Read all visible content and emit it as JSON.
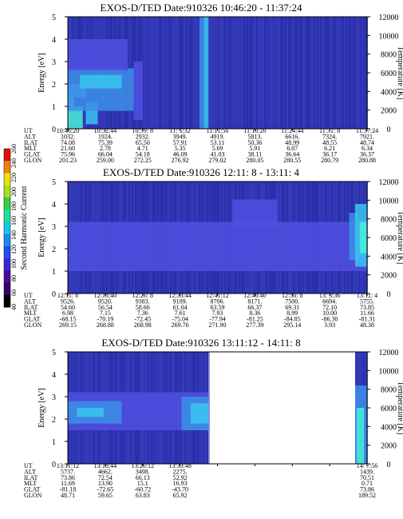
{
  "colors": {
    "background": "#ffffff",
    "spectrogram_base": "#2e34b0",
    "enhancement_scale": [
      "#5050e0",
      "#3d8fe8",
      "#39c6f0",
      "#46f0d8",
      "#7cf59a"
    ]
  },
  "chart_data": [
    {
      "type": "heatmap",
      "title": "EXOS-D/TED   Date:910326  10:46:20 - 11:37:24",
      "ylabel": "Energy [eV]",
      "ylabel_right": "Temperature [K]",
      "ylim": [
        0,
        5
      ],
      "ylim_right": [
        0,
        12000
      ],
      "y_ticks": [
        "0",
        "1",
        "2",
        "3",
        "4",
        "5"
      ],
      "y_ticks_right": [
        "0",
        "2000",
        "4000",
        "6000",
        "8000",
        "10000",
        "12000"
      ],
      "row_labels": [
        "UT",
        "ALT",
        "ILAT",
        "MLT",
        "GLAT",
        "GLON"
      ],
      "columns": [
        [
          "10:46:20",
          "1032.",
          "74.08",
          "21.60",
          "75.96",
          "201.23"
        ],
        [
          "10:52:44",
          "1924.",
          "75.39",
          "2.78",
          "66.04",
          "259.00"
        ],
        [
          "10:59: 8",
          "2932.",
          "65.50",
          "4.71",
          "54.18",
          "272.25"
        ],
        [
          "11: 5:32",
          "3949.",
          "57.91",
          "5.35",
          "46.09",
          "276.92"
        ],
        [
          "11:11:56",
          "4919.",
          "53.11",
          "5.69",
          "41.03",
          "279.02"
        ],
        [
          "11:18:20",
          "5813.",
          "50.36",
          "5.91",
          "38.11",
          "280.05"
        ],
        [
          "11:24:44",
          "6616.",
          "48.99",
          "6.07",
          "36.64",
          "280.55"
        ],
        [
          "11:31: 8",
          "7324.",
          "48.55",
          "6.21",
          "36.17",
          "280.79"
        ],
        [
          "11:37:24",
          "7921.",
          "48.74",
          "6.34",
          "36.37",
          "280.88"
        ]
      ],
      "features": [
        {
          "t": [
            0.0,
            0.02
          ],
          "e": [
            0.0,
            1.4
          ],
          "level": 3
        },
        {
          "t": [
            0.02,
            0.05
          ],
          "e": [
            0.0,
            1.0
          ],
          "level": 3
        },
        {
          "t": [
            0.0,
            0.06
          ],
          "e": [
            1.4,
            2.0
          ],
          "level": 2
        },
        {
          "t": [
            0.06,
            0.1
          ],
          "e": [
            0.2,
            1.2
          ],
          "level": 2
        },
        {
          "t": [
            0.0,
            0.22
          ],
          "e": [
            0.8,
            2.7
          ],
          "level": 1
        },
        {
          "t": [
            0.04,
            0.18
          ],
          "e": [
            1.8,
            2.4
          ],
          "level": 2
        },
        {
          "t": [
            0.0,
            0.2
          ],
          "e": [
            2.6,
            4.0
          ],
          "level": 0
        },
        {
          "t": [
            0.22,
            0.25
          ],
          "e": [
            0.4,
            3.0
          ],
          "level": 0
        },
        {
          "t": [
            0.44,
            0.46
          ],
          "e": [
            0.0,
            5.0
          ],
          "level": 1
        },
        {
          "t": [
            0.455,
            0.47
          ],
          "e": [
            0.0,
            5.0
          ],
          "level": 2
        }
      ]
    },
    {
      "type": "heatmap",
      "title": "EXOS-D/TED   Date:910326  12:11: 8 - 13:11: 4",
      "ylabel": "Energy [eV]",
      "ylabel_right": "Temperature [K]",
      "ylim": [
        0,
        5
      ],
      "ylim_right": [
        0,
        12000
      ],
      "y_ticks": [
        "0",
        "1",
        "2",
        "3",
        "4",
        "5"
      ],
      "y_ticks_right": [
        "0",
        "2000",
        "4000",
        "6000",
        "8000",
        "10000",
        "12000"
      ],
      "row_labels": [
        "UT",
        "ALT",
        "ILAT",
        "MLT",
        "GLAT",
        "GLON"
      ],
      "columns": [
        [
          "12:11: 8",
          "9526.",
          "54.60",
          "6.98",
          "-68.15",
          "269.15"
        ],
        [
          "12:18:40",
          "9520.",
          "56.54",
          "7.15",
          "-70.19",
          "268.88"
        ],
        [
          "12:26: 8",
          "9383.",
          "58.66",
          "7.36",
          "-72.45",
          "268.98"
        ],
        [
          "12:33:44",
          "9109.",
          "61.04",
          "7.61",
          "-75.04",
          "269.76"
        ],
        [
          "12:41:12",
          "8706.",
          "63.59",
          "7.93",
          "-77.94",
          "271.90"
        ],
        [
          "12:48:40",
          "8171.",
          "66.37",
          "8.36",
          "-81.25",
          "277.39"
        ],
        [
          "12:56: 8",
          "7500.",
          "69.31",
          "8.99",
          "-84.85",
          "295.14"
        ],
        [
          "13: 3:36",
          "6694.",
          "72.10",
          "10.00",
          "-86.30",
          "3.93"
        ],
        [
          "13:11: 4",
          "5755.",
          "73.85",
          "11.66",
          "-81.31",
          "48.38"
        ]
      ],
      "features": [
        {
          "t": [
            0.0,
            1.0
          ],
          "e": [
            1.0,
            3.2
          ],
          "level": 0
        },
        {
          "t": [
            0.55,
            0.7
          ],
          "e": [
            3.0,
            4.2
          ],
          "level": 0
        },
        {
          "t": [
            0.94,
            0.97
          ],
          "e": [
            1.5,
            3.6
          ],
          "level": 1
        },
        {
          "t": [
            0.96,
            1.0
          ],
          "e": [
            1.2,
            4.0
          ],
          "level": 2
        },
        {
          "t": [
            0.975,
            1.0
          ],
          "e": [
            1.8,
            3.2
          ],
          "level": 3
        }
      ]
    },
    {
      "type": "heatmap",
      "title": "EXOS-D/TED   Date:910326  13:11:12 - 14:11: 8",
      "ylabel": "Energy [eV]",
      "ylabel_right": "Temperature [K]",
      "ylim": [
        0,
        5
      ],
      "ylim_right": [
        0,
        12000
      ],
      "y_ticks": [
        "0",
        "1",
        "2",
        "3",
        "4",
        "5"
      ],
      "y_ticks_right": [
        "0",
        "2000",
        "4000",
        "6000",
        "8000",
        "10000",
        "12000"
      ],
      "row_labels": [
        "UT",
        "ALT",
        "ILAT",
        "MLT",
        "GLAT",
        "GLON"
      ],
      "columns": [
        [
          "13:11:12",
          "5737.",
          "73.86",
          "11.69",
          "-81.18",
          "48.71"
        ],
        [
          "13:18:44",
          "4662.",
          "72.54",
          "13.90",
          "-72.65",
          "59.65"
        ],
        [
          "13:26:12",
          "3498.",
          "66.13",
          "15.1",
          "-60.72",
          "63.83"
        ],
        [
          "13:33:48",
          "2275.",
          "52.92",
          "16.93",
          "-43.70",
          "65.92"
        ],
        [
          "",
          "",
          "",
          "",
          "",
          ""
        ],
        [
          "",
          "",
          "",
          "",
          "",
          ""
        ],
        [
          "",
          "",
          "",
          "",
          "",
          ""
        ],
        [
          "",
          "",
          "",
          "",
          "",
          ""
        ],
        [
          "14: 7:56",
          "1439.",
          "70.51",
          "0.71",
          "73.86",
          "189.52"
        ]
      ],
      "data_gap": [
        0.47,
        0.96
      ],
      "features": [
        {
          "t": [
            0.0,
            0.47
          ],
          "e": [
            1.5,
            3.2
          ],
          "level": 0
        },
        {
          "t": [
            0.0,
            0.18
          ],
          "e": [
            1.8,
            2.8
          ],
          "level": 1
        },
        {
          "t": [
            0.03,
            0.12
          ],
          "e": [
            2.1,
            2.5
          ],
          "level": 2
        },
        {
          "t": [
            0.38,
            0.47
          ],
          "e": [
            1.5,
            3.0
          ],
          "level": 1
        },
        {
          "t": [
            0.41,
            0.47
          ],
          "e": [
            1.8,
            2.7
          ],
          "level": 2
        },
        {
          "t": [
            0.96,
            1.0
          ],
          "e": [
            0.0,
            3.5
          ],
          "level": 1
        },
        {
          "t": [
            0.965,
            0.99
          ],
          "e": [
            0.0,
            2.5
          ],
          "level": 3
        }
      ]
    }
  ],
  "colorbar": {
    "label": "Second Harmonic Current",
    "ticks": [
      "40",
      "60",
      "80",
      "100",
      "120",
      "140",
      "160",
      "180",
      "200",
      "220",
      "240",
      "260"
    ],
    "colors": [
      "#000000",
      "#3a0066",
      "#4b0a9a",
      "#3a2bd2",
      "#2050f0",
      "#1a8cf0",
      "#18c8e8",
      "#20e0a0",
      "#30d040",
      "#a8e020",
      "#f0e010",
      "#f08010",
      "#e01010"
    ]
  }
}
